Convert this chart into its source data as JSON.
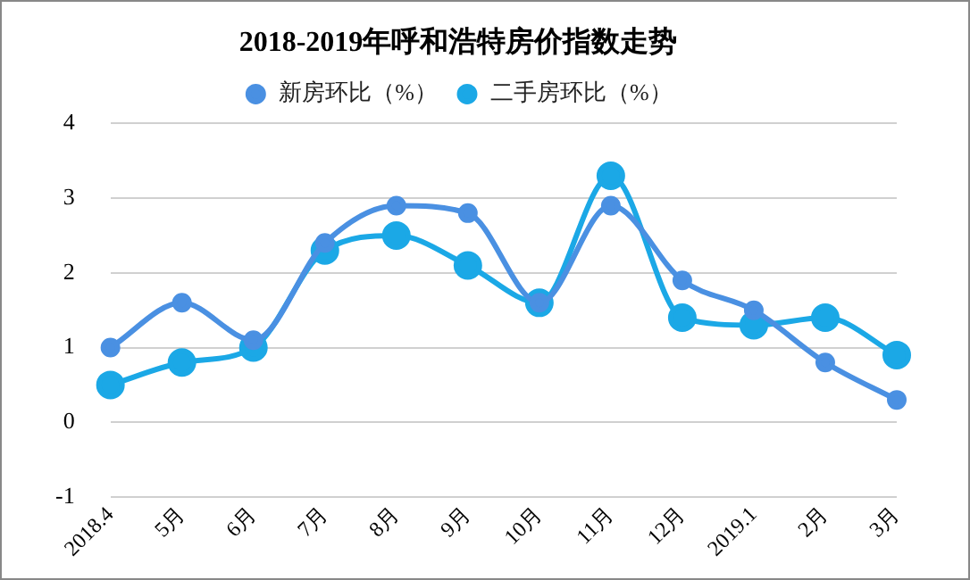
{
  "chart_data": {
    "type": "line",
    "title": "2018-2019年呼和浩特房价指数走势",
    "categories": [
      "2018.4",
      "5月",
      "6月",
      "7月",
      "8月",
      "9月",
      "10月",
      "11月",
      "12月",
      "2019.1",
      "2月",
      "3月"
    ],
    "series": [
      {
        "name": "新房环比（%）",
        "color": "#4a90e2",
        "values": [
          1.0,
          1.6,
          1.1,
          2.4,
          2.9,
          2.8,
          1.6,
          2.9,
          1.9,
          1.5,
          0.8,
          0.3
        ]
      },
      {
        "name": "二手房环比（%）",
        "color": "#1ba8e6",
        "values": [
          0.5,
          0.8,
          1.0,
          2.3,
          2.5,
          2.1,
          1.6,
          3.3,
          1.4,
          1.3,
          1.4,
          0.9
        ]
      }
    ],
    "ylim": [
      -1,
      4
    ],
    "yticks": [
      -1,
      0,
      1,
      2,
      3,
      4
    ],
    "grid": "y",
    "legend": "top",
    "marker": "circle",
    "line_style": "solid"
  }
}
